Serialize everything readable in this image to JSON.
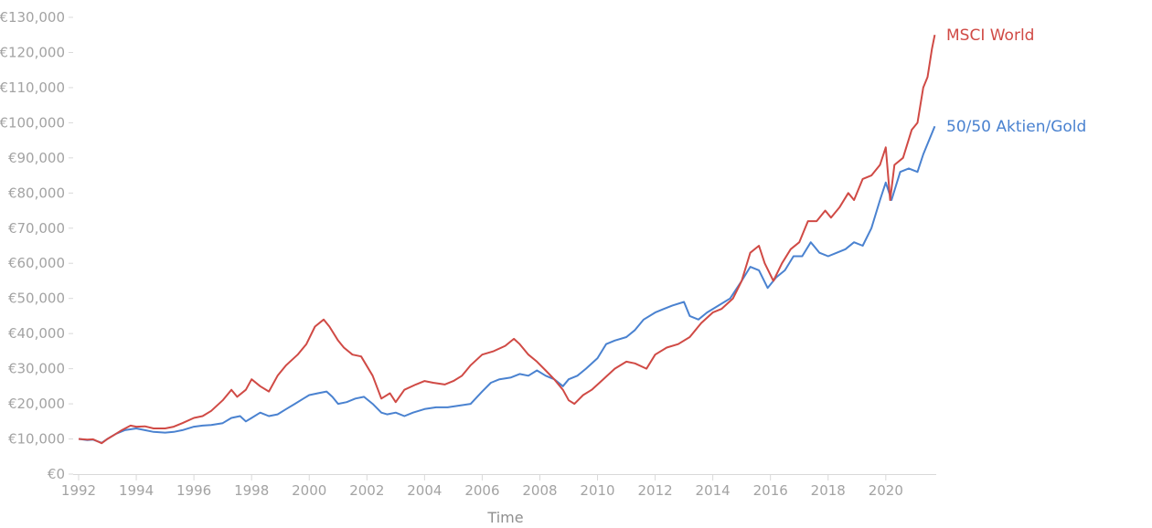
{
  "chart_data": {
    "type": "line",
    "title": "",
    "xlabel": "Time",
    "ylabel": "",
    "xlim": [
      1992,
      2021.75
    ],
    "ylim": [
      0,
      130000
    ],
    "grid": false,
    "legend": "inline-right",
    "y_ticks": [
      0,
      10000,
      20000,
      30000,
      40000,
      50000,
      60000,
      70000,
      80000,
      90000,
      100000,
      110000,
      120000,
      130000
    ],
    "y_tick_labels": [
      "€0",
      "€10,000",
      "€20,000",
      "€30,000",
      "€40,000",
      "€50,000",
      "€60,000",
      "€70,000",
      "€80,000",
      "€90,000",
      "€100,000",
      "€110,000",
      "€120,000",
      "€130,000"
    ],
    "x_ticks": [
      1992,
      1994,
      1996,
      1998,
      2000,
      2002,
      2004,
      2006,
      2008,
      2010,
      2012,
      2014,
      2016,
      2018,
      2020
    ],
    "x_tick_labels": [
      "1992",
      "1994",
      "1996",
      "1998",
      "2000",
      "2002",
      "2004",
      "2006",
      "2008",
      "2010",
      "2012",
      "2014",
      "2016",
      "2018",
      "2020"
    ],
    "series": [
      {
        "name": "MSCI World",
        "color": "#d04a45",
        "x": [
          1992.0,
          1992.3,
          1992.5,
          1992.8,
          1993.0,
          1993.3,
          1993.5,
          1993.8,
          1994.0,
          1994.3,
          1994.6,
          1995.0,
          1995.3,
          1995.6,
          1996.0,
          1996.3,
          1996.6,
          1997.0,
          1997.3,
          1997.5,
          1997.8,
          1998.0,
          1998.3,
          1998.6,
          1998.9,
          1999.2,
          1999.6,
          1999.9,
          2000.2,
          2000.5,
          2000.7,
          2001.0,
          2001.2,
          2001.5,
          2001.8,
          2002.2,
          2002.5,
          2002.8,
          2003.0,
          2003.3,
          2003.7,
          2004.0,
          2004.3,
          2004.7,
          2005.0,
          2005.3,
          2005.6,
          2006.0,
          2006.4,
          2006.8,
          2007.1,
          2007.3,
          2007.6,
          2007.9,
          2008.2,
          2008.5,
          2008.8,
          2009.0,
          2009.2,
          2009.5,
          2009.8,
          2010.2,
          2010.6,
          2011.0,
          2011.3,
          2011.7,
          2012.0,
          2012.4,
          2012.8,
          2013.2,
          2013.6,
          2014.0,
          2014.3,
          2014.7,
          2015.0,
          2015.3,
          2015.6,
          2015.8,
          2016.1,
          2016.4,
          2016.7,
          2017.0,
          2017.3,
          2017.6,
          2017.9,
          2018.1,
          2018.4,
          2018.7,
          2018.9,
          2019.2,
          2019.5,
          2019.8,
          2020.0,
          2020.15,
          2020.3,
          2020.6,
          2020.9,
          2021.1,
          2021.3,
          2021.45,
          2021.6,
          2021.7
        ],
        "values": [
          10000,
          9800,
          9900,
          8800,
          10000,
          11500,
          12500,
          13800,
          13500,
          13600,
          13000,
          13000,
          13500,
          14500,
          16000,
          16500,
          18000,
          21000,
          24000,
          22000,
          24000,
          27000,
          25000,
          23500,
          28000,
          31000,
          34000,
          37000,
          42000,
          44000,
          42000,
          38000,
          36000,
          34000,
          33500,
          28000,
          21500,
          23000,
          20500,
          24000,
          25500,
          26500,
          26000,
          25500,
          26500,
          28000,
          31000,
          34000,
          35000,
          36500,
          38500,
          37000,
          34000,
          32000,
          29500,
          27000,
          24000,
          21000,
          20000,
          22500,
          24000,
          27000,
          30000,
          32000,
          31500,
          30000,
          34000,
          36000,
          37000,
          39000,
          43000,
          46000,
          47000,
          50000,
          55000,
          63000,
          65000,
          60000,
          55000,
          60000,
          64000,
          66000,
          72000,
          72000,
          75000,
          73000,
          76000,
          80000,
          78000,
          84000,
          85000,
          88000,
          93000,
          78000,
          88000,
          90000,
          98000,
          100000,
          110000,
          113000,
          121000,
          125000
        ]
      },
      {
        "name": "50/50 Aktien/Gold",
        "color": "#4a82d0",
        "x": [
          1992.0,
          1992.3,
          1992.5,
          1992.8,
          1993.0,
          1993.3,
          1993.6,
          1994.0,
          1994.3,
          1994.6,
          1995.0,
          1995.3,
          1995.6,
          1996.0,
          1996.3,
          1996.6,
          1997.0,
          1997.3,
          1997.6,
          1997.8,
          1998.0,
          1998.3,
          1998.6,
          1998.9,
          1999.2,
          1999.5,
          1999.8,
          2000.0,
          2000.3,
          2000.6,
          2000.8,
          2001.0,
          2001.3,
          2001.6,
          2001.9,
          2002.2,
          2002.5,
          2002.7,
          2003.0,
          2003.3,
          2003.6,
          2004.0,
          2004.4,
          2004.8,
          2005.2,
          2005.6,
          2006.0,
          2006.3,
          2006.6,
          2007.0,
          2007.3,
          2007.6,
          2007.9,
          2008.2,
          2008.5,
          2008.8,
          2009.0,
          2009.3,
          2009.6,
          2010.0,
          2010.3,
          2010.6,
          2011.0,
          2011.3,
          2011.6,
          2012.0,
          2012.3,
          2012.6,
          2013.0,
          2013.2,
          2013.5,
          2013.8,
          2014.2,
          2014.6,
          2015.0,
          2015.3,
          2015.6,
          2015.9,
          2016.2,
          2016.5,
          2016.8,
          2017.1,
          2017.4,
          2017.7,
          2018.0,
          2018.3,
          2018.6,
          2018.9,
          2019.2,
          2019.5,
          2019.8,
          2020.0,
          2020.2,
          2020.5,
          2020.8,
          2021.1,
          2021.3,
          2021.5,
          2021.7
        ],
        "values": [
          10000,
          9700,
          9800,
          8900,
          10000,
          11500,
          12500,
          13000,
          12500,
          12000,
          11800,
          12000,
          12500,
          13500,
          13800,
          14000,
          14500,
          16000,
          16500,
          15000,
          16000,
          17500,
          16500,
          17000,
          18500,
          20000,
          21500,
          22500,
          23000,
          23500,
          22000,
          20000,
          20500,
          21500,
          22000,
          20000,
          17500,
          17000,
          17500,
          16500,
          17500,
          18500,
          19000,
          19000,
          19500,
          20000,
          23500,
          26000,
          27000,
          27500,
          28500,
          28000,
          29500,
          28000,
          27000,
          25000,
          27000,
          28000,
          30000,
          33000,
          37000,
          38000,
          39000,
          41000,
          44000,
          46000,
          47000,
          48000,
          49000,
          45000,
          44000,
          46000,
          48000,
          50000,
          55000,
          59000,
          58000,
          53000,
          56000,
          58000,
          62000,
          62000,
          66000,
          63000,
          62000,
          63000,
          64000,
          66000,
          65000,
          70000,
          78000,
          83000,
          78000,
          86000,
          87000,
          86000,
          91000,
          95000,
          99000
        ]
      }
    ]
  }
}
